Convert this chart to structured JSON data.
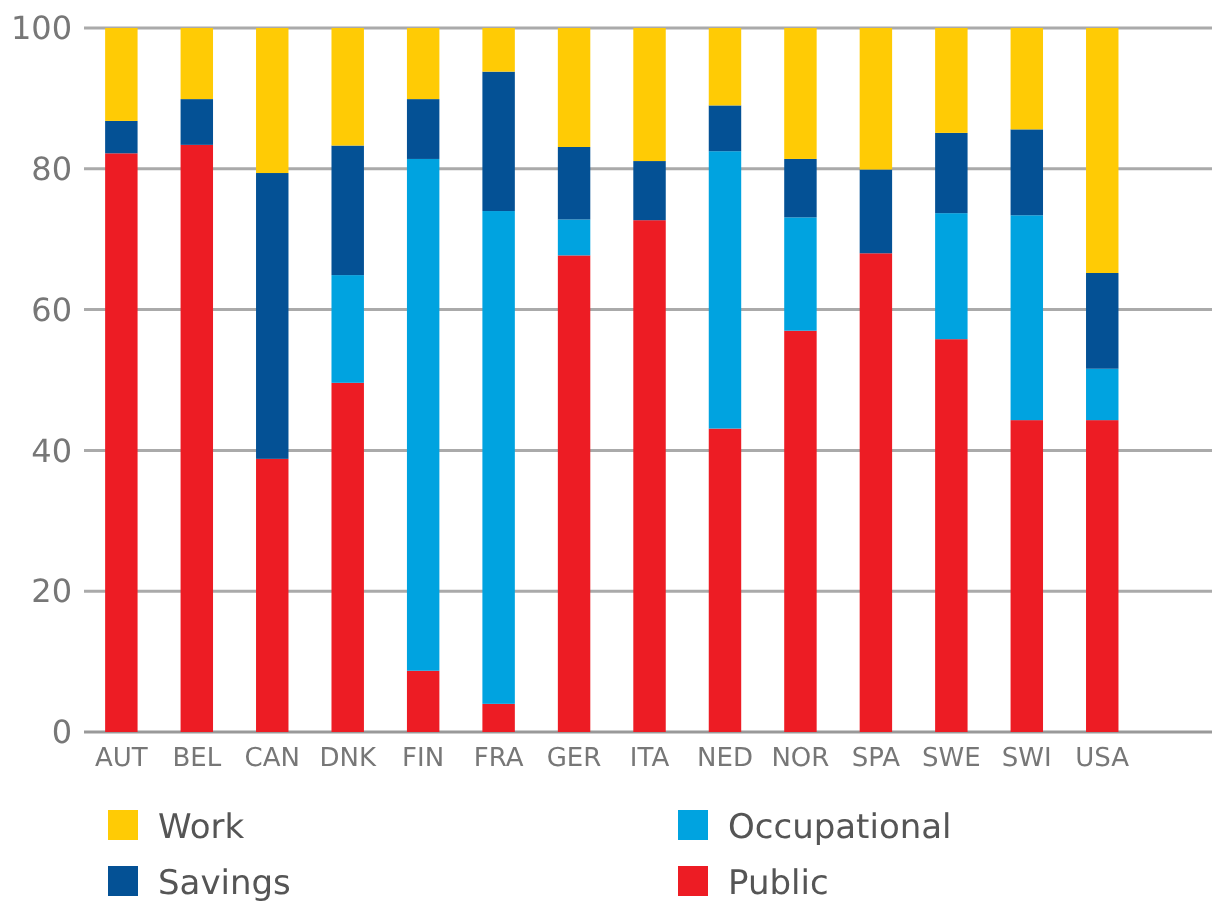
{
  "chart_data": {
    "type": "bar",
    "stacked": true,
    "categories": [
      "AUT",
      "BEL",
      "CAN",
      "DNK",
      "FIN",
      "FRA",
      "GER",
      "ITA",
      "NED",
      "NOR",
      "SPA",
      "SWE",
      "SWI",
      "USA"
    ],
    "series": [
      {
        "name": "Public",
        "color": "#ed1c24",
        "values": [
          82.2,
          83.4,
          38.8,
          49.6,
          8.7,
          4.0,
          67.7,
          72.7,
          43.1,
          57.0,
          68.0,
          55.8,
          44.3,
          44.3
        ]
      },
      {
        "name": "Occupational",
        "color": "#00a3e0",
        "values": [
          0,
          0,
          0,
          15.3,
          72.7,
          70.0,
          5.1,
          0,
          39.4,
          16.1,
          0,
          17.9,
          29.1,
          7.3
        ]
      },
      {
        "name": "Savings",
        "color": "#045195",
        "values": [
          4.6,
          6.5,
          40.6,
          18.4,
          8.5,
          19.8,
          10.3,
          8.4,
          6.5,
          8.3,
          11.9,
          11.4,
          12.2,
          13.6
        ]
      },
      {
        "name": "Work",
        "color": "#ffcb05",
        "values": [
          13.2,
          10.1,
          20.6,
          16.7,
          10.1,
          6.2,
          16.9,
          18.9,
          11.0,
          18.6,
          20.1,
          14.9,
          14.4,
          34.8
        ]
      }
    ],
    "ylim": [
      0,
      100
    ],
    "yticks": [
      0,
      20,
      40,
      60,
      80,
      100
    ],
    "grid": "y",
    "legend": "bottom"
  }
}
